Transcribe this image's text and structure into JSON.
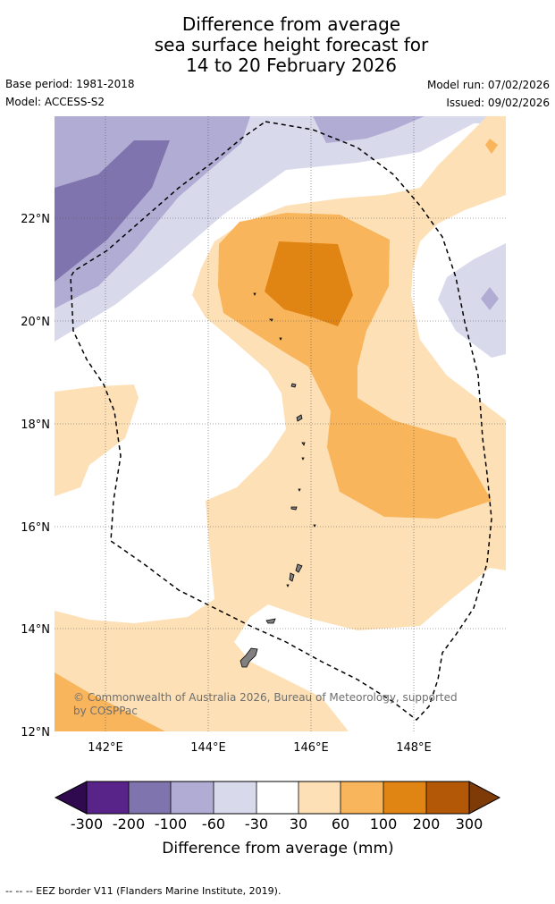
{
  "title": {
    "line1": "Difference from average",
    "line2": "sea surface height forecast for",
    "line3": "14 to 20 February 2026"
  },
  "meta": {
    "base_period": "Base period: 1981-2018",
    "model": "Model: ACCESS-S2",
    "model_run": "Model run: 07/02/2026",
    "issued": "Issued: 09/02/2026"
  },
  "map": {
    "lat_labels": [
      "22°N",
      "20°N",
      "18°N",
      "16°N",
      "14°N",
      "12°N"
    ],
    "lon_labels": [
      "142°E",
      "144°E",
      "146°E",
      "148°E"
    ],
    "copyright_line1": "© Commonwealth of Australia 2026, Bureau of Meteorology, supported",
    "copyright_line2": "by COSPPac",
    "colors": {
      "c_m300": "#2f0a4e",
      "c_m200": "#58248a",
      "c_m100": "#8074ae",
      "c_m60": "#b1acd3",
      "c_m30": "#d9d9ec",
      "c_0": "#ffffff",
      "c_30": "#fde0b6",
      "c_60": "#f9b55c",
      "c_100": "#e08414",
      "c_200": "#b35807",
      "c_300": "#7e3b08"
    }
  },
  "colorbar": {
    "tick_labels": [
      "-300",
      "-200",
      "-100",
      "-60",
      "-30",
      "30",
      "60",
      "100",
      "200",
      "300"
    ],
    "label": "Difference from average (mm)"
  },
  "footnote": "--  --  -- EEZ border V11 (Flanders Marine Institute, 2019)."
}
